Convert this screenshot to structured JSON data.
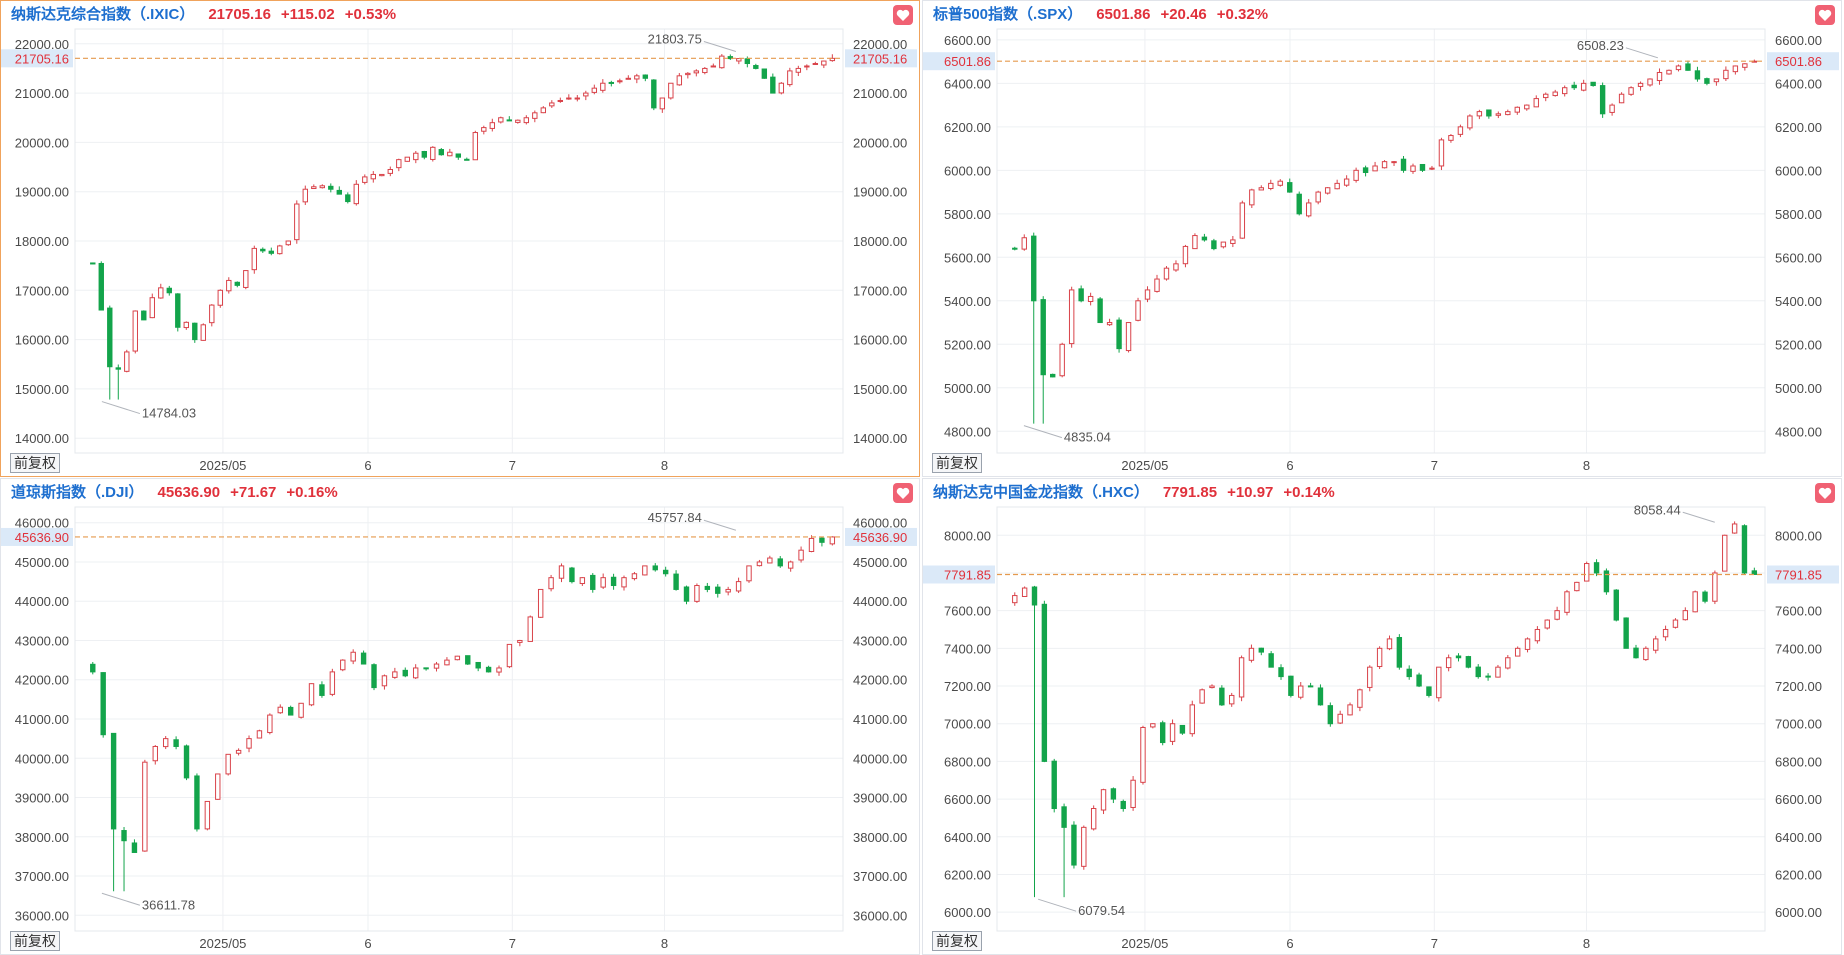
{
  "colors": {
    "up": "#d9434a",
    "down": "#13a44b",
    "accent": "#1e6fcf",
    "price_line": "#e59a4e",
    "axis_text": "#4a4a4a"
  },
  "adjust_label": "前复权",
  "favorite_icon": "heart-icon",
  "chart_data": [
    {
      "type": "candlestick",
      "header": {
        "name": "纳斯达克综合指数（.IXIC）",
        "price": "21705.16",
        "change": "+115.02",
        "pct": "+0.53%"
      },
      "title": "纳斯达克综合指数（.IXIC）",
      "current_price": 21705.16,
      "current_price_label": "21705.16",
      "ylim": [
        13700,
        22300
      ],
      "y_ticks": [
        22000,
        21000,
        20000,
        19000,
        18000,
        17000,
        16000,
        15000,
        14000
      ],
      "y_tick_labels": [
        "22000.00",
        "21000.00",
        "20000.00",
        "19000.00",
        "18000.00",
        "17000.00",
        "16000.00",
        "15000.00",
        "14000.00"
      ],
      "x_labels": [
        {
          "text": "2025/05",
          "index": 20.3
        },
        {
          "text": "6",
          "index": 40.7
        },
        {
          "text": "7",
          "index": 61
        },
        {
          "text": "8",
          "index": 82.4
        }
      ],
      "high_label": {
        "value": 21803.75,
        "text": "21803.75",
        "index": 93
      },
      "low_label": {
        "value": 14784.03,
        "text": "14784.03",
        "index": 3
      },
      "total_slots": 108,
      "active": true,
      "closes": [
        17550,
        16600,
        15450,
        15400,
        15750,
        16580,
        16400,
        16850,
        17050,
        16950,
        16250,
        16350,
        16000,
        16300,
        16700,
        17000,
        17200,
        17100,
        17400,
        17850,
        17800,
        17750,
        17900,
        18000,
        18750,
        19050,
        19100,
        19120,
        19050,
        18950,
        18800,
        19150,
        19300,
        19350,
        19350,
        19450,
        19650,
        19700,
        19780,
        19700,
        19900,
        19750,
        19800,
        19700,
        19650,
        20200,
        20300,
        20400,
        20500,
        20450,
        20450,
        20500,
        20600,
        20700,
        20800,
        20850,
        20900,
        20900,
        21000,
        21100,
        21200,
        21200,
        21250,
        21300,
        21350,
        21300,
        20700,
        20900,
        21200,
        21350,
        21400,
        21450,
        21500,
        21550,
        21750,
        21700,
        21700,
        21600,
        21500,
        21300,
        21000,
        21200,
        21450,
        21500,
        21550,
        21600,
        21650,
        21705
      ]
    },
    {
      "type": "candlestick",
      "header": {
        "name": "标普500指数（.SPX）",
        "price": "6501.86",
        "change": "+20.46",
        "pct": "+0.32%"
      },
      "title": "标普500指数（.SPX）",
      "current_price": 6501.86,
      "current_price_label": "6501.86",
      "ylim": [
        4700,
        6650
      ],
      "y_ticks": [
        6600,
        6400,
        6200,
        6000,
        5800,
        5600,
        5400,
        5200,
        5000,
        4800
      ],
      "y_tick_labels": [
        "6600.00",
        "6400.00",
        "6200.00",
        "6000.00",
        "5800.00",
        "5600.00",
        "5400.00",
        "5200.00",
        "5000.00",
        "4800.00"
      ],
      "x_labels": [
        {
          "text": "2025/05",
          "index": 20.3
        },
        {
          "text": "6",
          "index": 40.7
        },
        {
          "text": "7",
          "index": 61
        },
        {
          "text": "8",
          "index": 82.4
        }
      ],
      "high_label": {
        "value": 6508.23,
        "text": "6508.23",
        "index": 93
      },
      "low_label": {
        "value": 4835.04,
        "text": "4835.04",
        "index": 3
      },
      "total_slots": 108,
      "active": false,
      "closes": [
        5640,
        5690,
        5400,
        5060,
        5050,
        5200,
        5450,
        5400,
        5420,
        5300,
        5300,
        5180,
        5300,
        5400,
        5450,
        5500,
        5550,
        5570,
        5650,
        5700,
        5680,
        5640,
        5670,
        5680,
        5850,
        5910,
        5920,
        5940,
        5950,
        5900,
        5800,
        5850,
        5900,
        5920,
        5940,
        5960,
        6000,
        5990,
        6020,
        6040,
        6040,
        6000,
        6020,
        6000,
        6010,
        6140,
        6160,
        6200,
        6250,
        6270,
        6250,
        6260,
        6270,
        6290,
        6300,
        6330,
        6350,
        6360,
        6380,
        6380,
        6400,
        6390,
        6260,
        6300,
        6350,
        6380,
        6400,
        6420,
        6450,
        6460,
        6480,
        6460,
        6420,
        6400,
        6420,
        6460,
        6480,
        6490,
        6502
      ]
    },
    {
      "type": "candlestick",
      "header": {
        "name": "道琼斯指数（.DJI）",
        "price": "45636.90",
        "change": "+71.67",
        "pct": "+0.16%"
      },
      "title": "道琼斯指数（.DJI）",
      "current_price": 45636.9,
      "current_price_label": "45636.90",
      "ylim": [
        35600,
        46400
      ],
      "y_ticks": [
        46000,
        45000,
        44000,
        43000,
        42000,
        41000,
        40000,
        39000,
        38000,
        37000,
        36000
      ],
      "y_tick_labels": [
        "46000.00",
        "45000.00",
        "44000.00",
        "43000.00",
        "42000.00",
        "41000.00",
        "40000.00",
        "39000.00",
        "38000.00",
        "37000.00",
        "36000.00"
      ],
      "x_labels": [
        {
          "text": "2025/05",
          "index": 20.3
        },
        {
          "text": "6",
          "index": 40.7
        },
        {
          "text": "7",
          "index": 61
        },
        {
          "text": "8",
          "index": 82.4
        }
      ],
      "high_label": {
        "value": 45757.84,
        "text": "45757.84",
        "index": 93
      },
      "low_label": {
        "value": 36611.78,
        "text": "36611.78",
        "index": 3
      },
      "total_slots": 108,
      "active": false,
      "closes": [
        42200,
        40600,
        38200,
        37900,
        37600,
        39900,
        40300,
        40500,
        40300,
        39500,
        38200,
        38900,
        39600,
        40100,
        40200,
        40500,
        40700,
        41100,
        41300,
        41100,
        41400,
        41900,
        41600,
        42200,
        42500,
        42700,
        42400,
        41800,
        42100,
        42200,
        42100,
        42300,
        42300,
        42400,
        42500,
        42600,
        42400,
        42300,
        42200,
        42300,
        42900,
        43000,
        43600,
        44300,
        44600,
        44900,
        44500,
        44600,
        44300,
        44600,
        44400,
        44600,
        44700,
        44900,
        44800,
        44700,
        44300,
        44000,
        44400,
        44300,
        44200,
        44300,
        44500,
        44900,
        45000,
        45100,
        44900,
        45000,
        45300,
        45600,
        45500,
        45637
      ]
    },
    {
      "type": "candlestick",
      "header": {
        "name": "纳斯达克中国金龙指数（.HXC）",
        "price": "7791.85",
        "change": "+10.97",
        "pct": "+0.14%"
      },
      "title": "纳斯达克中国金龙指数（.HXC）",
      "current_price": 7791.85,
      "current_price_label": "7791.85",
      "ylim": [
        5900,
        8150
      ],
      "y_ticks": [
        8000,
        7800,
        7600,
        7400,
        7200,
        7000,
        6800,
        6600,
        6400,
        6200,
        6000
      ],
      "y_tick_labels": [
        "8000.00",
        "7800.00",
        "7600.00",
        "7400.00",
        "7200.00",
        "7000.00",
        "6800.00",
        "6600.00",
        "6400.00",
        "6200.00",
        "6000.00"
      ],
      "x_labels": [
        {
          "text": "2025/05",
          "index": 20.3
        },
        {
          "text": "6",
          "index": 40.7
        },
        {
          "text": "7",
          "index": 61
        },
        {
          "text": "8",
          "index": 82.4
        }
      ],
      "high_label": {
        "value": 8058.44,
        "text": "8058.44",
        "index": 101
      },
      "low_label": {
        "value": 6079.54,
        "text": "6079.54",
        "index": 5
      },
      "total_slots": 108,
      "active": false,
      "closes": [
        7680,
        7720,
        7630,
        6800,
        6550,
        6450,
        6250,
        6450,
        6550,
        6650,
        6600,
        6550,
        6700,
        6980,
        7000,
        6900,
        7000,
        6950,
        7100,
        7180,
        7200,
        7100,
        7150,
        7350,
        7400,
        7380,
        7300,
        7250,
        7150,
        7200,
        7200,
        7100,
        7000,
        7050,
        7100,
        7180,
        7300,
        7400,
        7450,
        7300,
        7250,
        7200,
        7150,
        7300,
        7350,
        7350,
        7300,
        7250,
        7250,
        7300,
        7350,
        7400,
        7450,
        7500,
        7550,
        7600,
        7700,
        7750,
        7850,
        7800,
        7700,
        7550,
        7400,
        7350,
        7400,
        7450,
        7500,
        7550,
        7600,
        7700,
        7650,
        7800,
        8000,
        8060,
        7800,
        7792
      ]
    }
  ]
}
